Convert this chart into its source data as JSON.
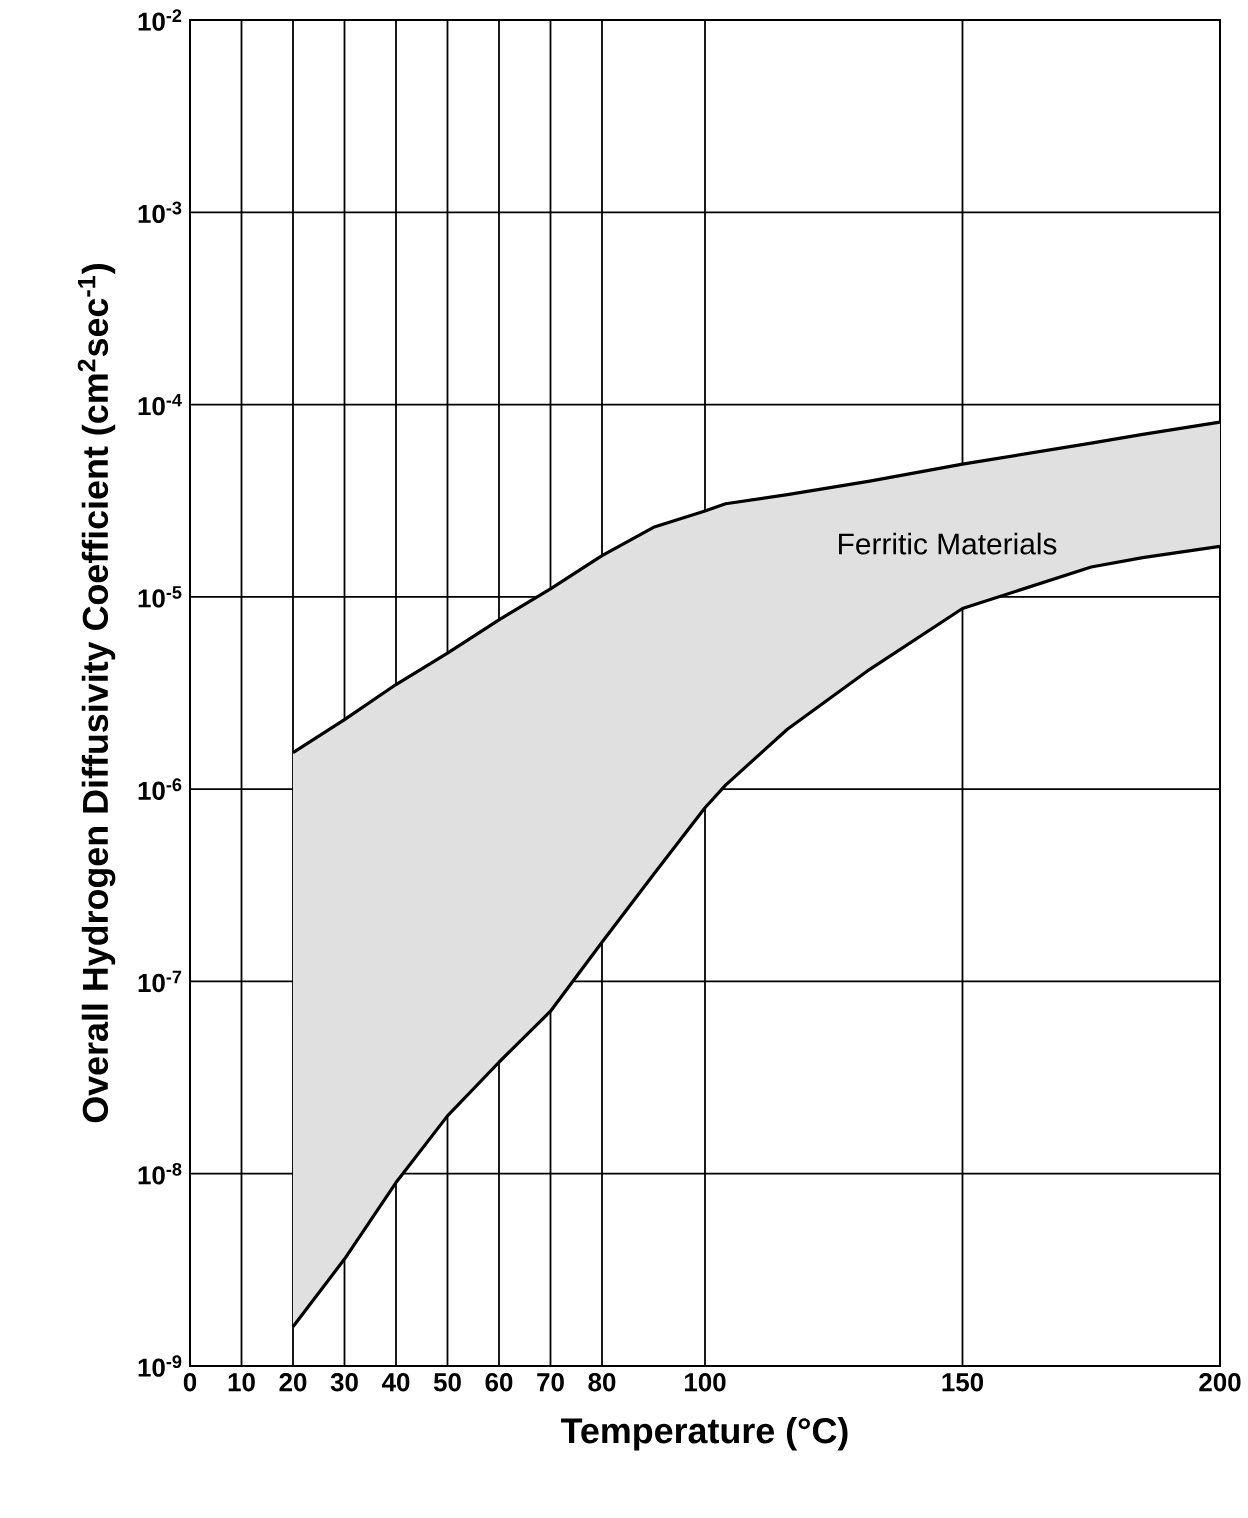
{
  "chart_data": {
    "type": "line",
    "xlabel": "Temperature (°C)",
    "ylabel": "Overall Hydrogen Diffusivity Coefficient (cm$^{2}$sec$^{-1}$)",
    "x": [
      20,
      30,
      40,
      50,
      60,
      70,
      80,
      90,
      100,
      104,
      116,
      132,
      150,
      175,
      185,
      200
    ],
    "series": [
      {
        "color": "#000000",
        "values": [
          1.55e-06,
          2.3e-06,
          3.5e-06,
          5.1e-06,
          7.6e-06,
          1.1e-05,
          1.64e-05,
          2.3e-05,
          2.8e-05,
          3.05e-05,
          3.4e-05,
          4e-05,
          4.9e-05,
          6.3e-05,
          7e-05,
          8.1e-05
        ],
        "lower": [
          1.6e-09,
          3.6e-09,
          9e-09,
          2e-08,
          3.8e-08,
          7e-08,
          1.6e-07,
          3.6e-07,
          8e-07,
          1.05e-06,
          2.05e-06,
          4.2e-06,
          8.7e-06,
          1.43e-05,
          1.6e-05,
          1.83e-05
        ],
        "upper": [
          1.55e-06,
          2.3e-06,
          3.5e-06,
          5.1e-06,
          7.6e-06,
          1.1e-05,
          1.64e-05,
          2.3e-05,
          2.8e-05,
          3.05e-05,
          3.4e-05,
          4e-05,
          4.9e-05,
          6.3e-05,
          7e-05,
          8.1e-05
        ]
      },
      {
        "color": "#000000",
        "values": [
          1.6e-09,
          3.6e-09,
          9e-09,
          2e-08,
          3.8e-08,
          7e-08,
          1.6e-07,
          3.6e-07,
          8e-07,
          1.05e-06,
          2.05e-06,
          4.2e-06,
          8.7e-06,
          1.43e-05,
          1.6e-05,
          1.83e-05
        ]
      }
    ],
    "annotations": [
      "Ferritic Materials"
    ],
    "xlim": [
      0,
      200
    ],
    "xticks": [
      0,
      10,
      20,
      30,
      40,
      50,
      60,
      70,
      80,
      100,
      150,
      200
    ],
    "ylim": [
      1e-09,
      0.01
    ],
    "yticks": [
      {
        "value": 1e-09,
        "label": "10$^{-9}$"
      },
      {
        "value": 1e-08,
        "label": "10$^{-8}$"
      },
      {
        "value": 1e-07,
        "label": "10$^{-7}$"
      },
      {
        "value": 1e-06,
        "label": "10$^{-6}$"
      },
      {
        "value": 1e-05,
        "label": "10$^{-5}$"
      },
      {
        "value": 0.0001,
        "label": "10$^{-4}$"
      },
      {
        "value": 0.001,
        "label": "10$^{-3}$"
      },
      {
        "value": 0.01,
        "label": "10$^{-2}$"
      }
    ],
    "log": "y",
    "grid": true
  }
}
